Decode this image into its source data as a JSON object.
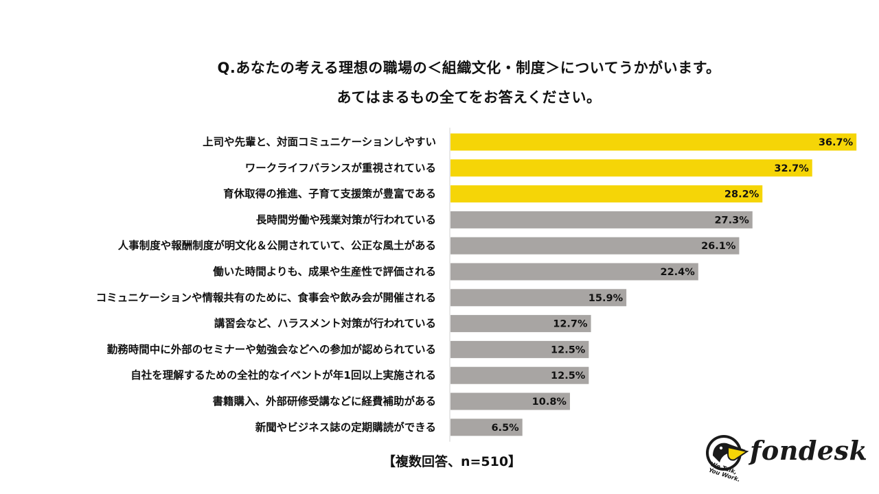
{
  "title": {
    "line1": "Q.あなたの考える理想の職場の＜組織文化・制度＞についてうかがいます。",
    "line2": "あてはまるもの全てをお答えください。"
  },
  "footnote": "【複数回答、n=510】",
  "logo": {
    "wordmark": "fondesk",
    "tagline_1": "We Talk,",
    "tagline_2": "You Work."
  },
  "colors": {
    "highlight": "#F5D507",
    "default": "#A8A5A3",
    "axis": "#D0D0D0",
    "text": "#111111"
  },
  "chart_data": {
    "type": "bar",
    "orientation": "horizontal",
    "xlim": [
      0,
      37
    ],
    "grid": false,
    "legend": "none",
    "value_suffix": "%",
    "highlight_top_n": 3,
    "categories": [
      "上司や先輩と、対面コミュニケーションしやすい",
      "ワークライフバランスが重視されている",
      "育休取得の推進、子育て支援策が豊富である",
      "長時間労働や残業対策が行われている",
      "人事制度や報酬制度が明文化＆公開されていて、公正な風土がある",
      "働いた時間よりも、成果や生産性で評価される",
      "コミュニケーションや情報共有のために、食事会や飲み会が開催される",
      "講習会など、ハラスメント対策が行われている",
      "勤務時間中に外部のセミナーや勉強会などへの参加が認められている",
      "自社を理解するための全社的なイベントが年1回以上実施される",
      "書籍購入、外部研修受講などに経費補助がある",
      "新聞やビジネス誌の定期購読ができる"
    ],
    "values": [
      36.7,
      32.7,
      28.2,
      27.3,
      26.1,
      22.4,
      15.9,
      12.7,
      12.5,
      12.5,
      10.8,
      6.5
    ],
    "labels": [
      "36.7%",
      "32.7%",
      "28.2%",
      "27.3%",
      "26.1%",
      "22.4%",
      "15.9%",
      "12.7%",
      "12.5%",
      "12.5%",
      "10.8%",
      "6.5%"
    ]
  }
}
